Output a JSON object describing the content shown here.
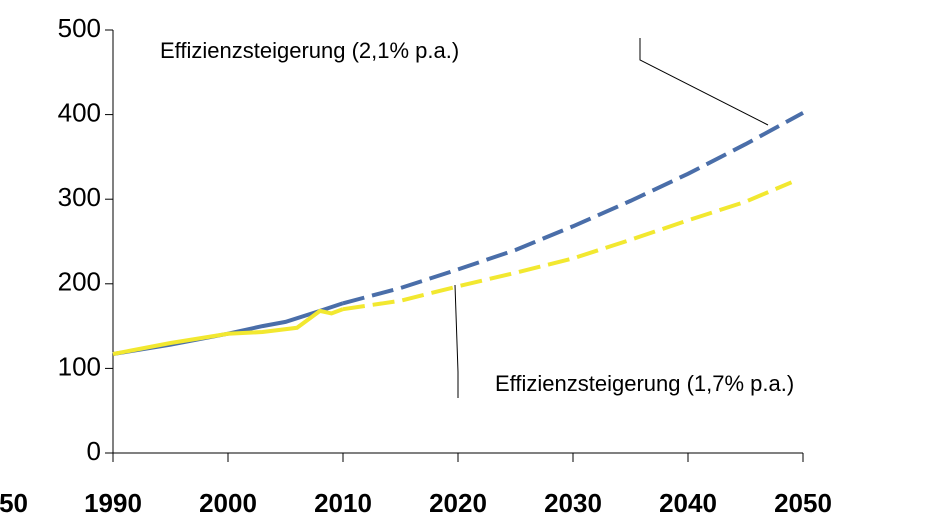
{
  "chart_data": {
    "type": "line",
    "xlim": [
      1990,
      2050
    ],
    "xticks": [
      1990,
      2000,
      2010,
      2020,
      2030,
      2040,
      2050
    ],
    "ylim": [
      0,
      500
    ],
    "yticks": [
      0,
      100,
      200,
      300,
      400,
      500
    ],
    "edge_label": "50",
    "series": [
      {
        "name": "Effizienzsteigerung (2,1% p.a.)",
        "color": "#4a6ea9",
        "dashed_from": 2010,
        "x": [
          1990,
          1995,
          2000,
          2003,
          2005,
          2008,
          2010,
          2015,
          2020,
          2025,
          2030,
          2035,
          2040,
          2045,
          2050
        ],
        "values": [
          117,
          128,
          141,
          150,
          155,
          168,
          177,
          195,
          217,
          240,
          268,
          298,
          330,
          365,
          402
        ]
      },
      {
        "name": "Effizienzsteigerung (1,7% p.a.)",
        "color": "#f2e830",
        "dashed_from": 2010,
        "x": [
          1990,
          1995,
          2000,
          2003,
          2006,
          2008,
          2009,
          2010,
          2015,
          2020,
          2025,
          2030,
          2035,
          2040,
          2045,
          2049
        ],
        "values": [
          117,
          130,
          141,
          143,
          148,
          168,
          165,
          170,
          180,
          197,
          213,
          230,
          252,
          275,
          297,
          320
        ]
      }
    ]
  }
}
